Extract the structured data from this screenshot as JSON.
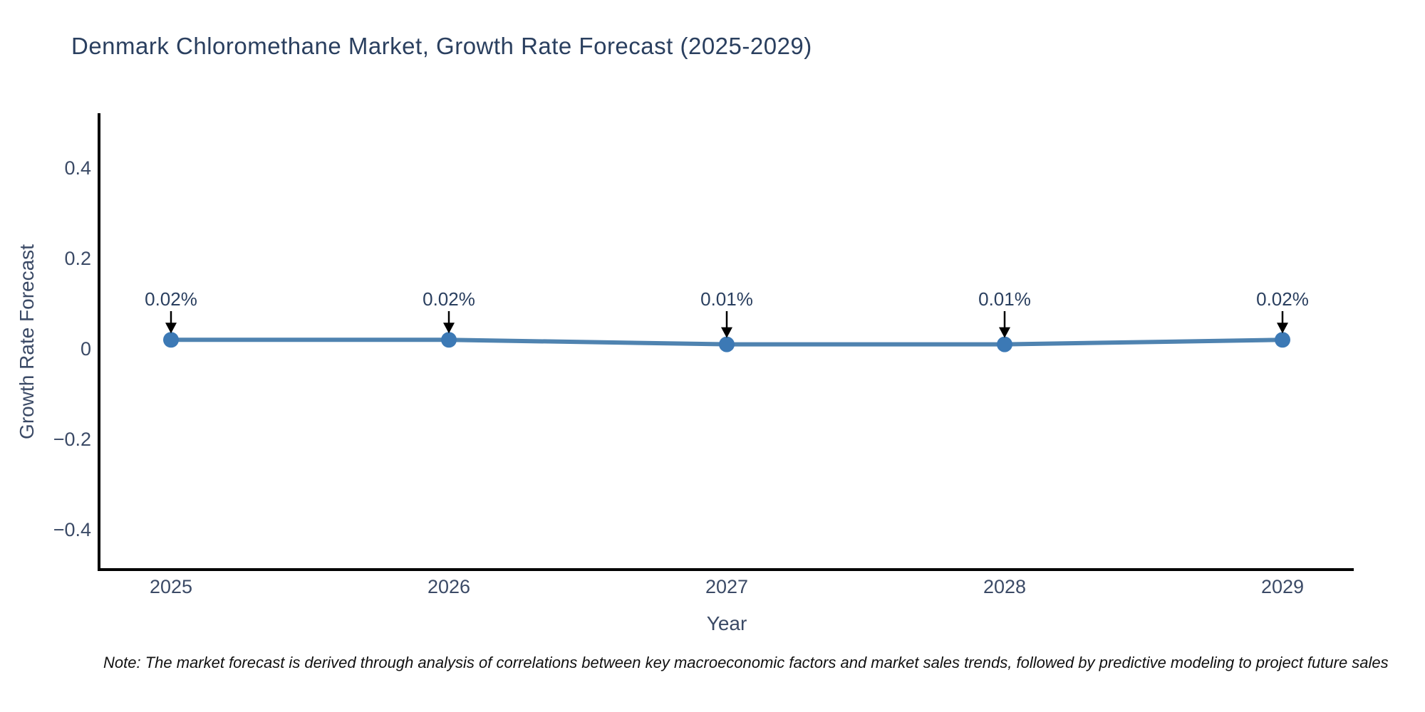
{
  "note": "Note: The market forecast is derived through analysis of correlations between key macroeconomic factors and market sales trends, followed by predictive modeling to project future sales",
  "chart_data": {
    "type": "line",
    "title": "Denmark Chloromethane Market, Growth Rate Forecast (2025-2029)",
    "xlabel": "Year",
    "ylabel": "Growth Rate Forecast",
    "categories": [
      "2025",
      "2026",
      "2027",
      "2028",
      "2029"
    ],
    "series": [
      {
        "name": "Growth Rate Forecast",
        "values": [
          0.02,
          0.02,
          0.01,
          0.01,
          0.02
        ]
      }
    ],
    "point_labels": [
      "0.02%",
      "0.02%",
      "0.01%",
      "0.01%",
      "0.02%"
    ],
    "yticks": {
      "values": [
        0.4,
        0.2,
        0,
        -0.2,
        -0.4
      ],
      "labels": [
        "0.4",
        "0.2",
        "0",
        "−0.2",
        "−0.4"
      ]
    },
    "ylim": [
      -0.49,
      0.52
    ],
    "grid": false,
    "legend_position": "none",
    "annotation_style": "value labels with downward arrows above each marker",
    "colors": {
      "line": "#4f83b0",
      "marker": "#3c79b5",
      "axis": "#000000",
      "title_text": "#2a3f5f",
      "tick_text": "#3b4a66",
      "annotation_text": "#2a3f5f",
      "arrow": "#000000",
      "note_text": "#111111",
      "background": "#ffffff"
    }
  }
}
